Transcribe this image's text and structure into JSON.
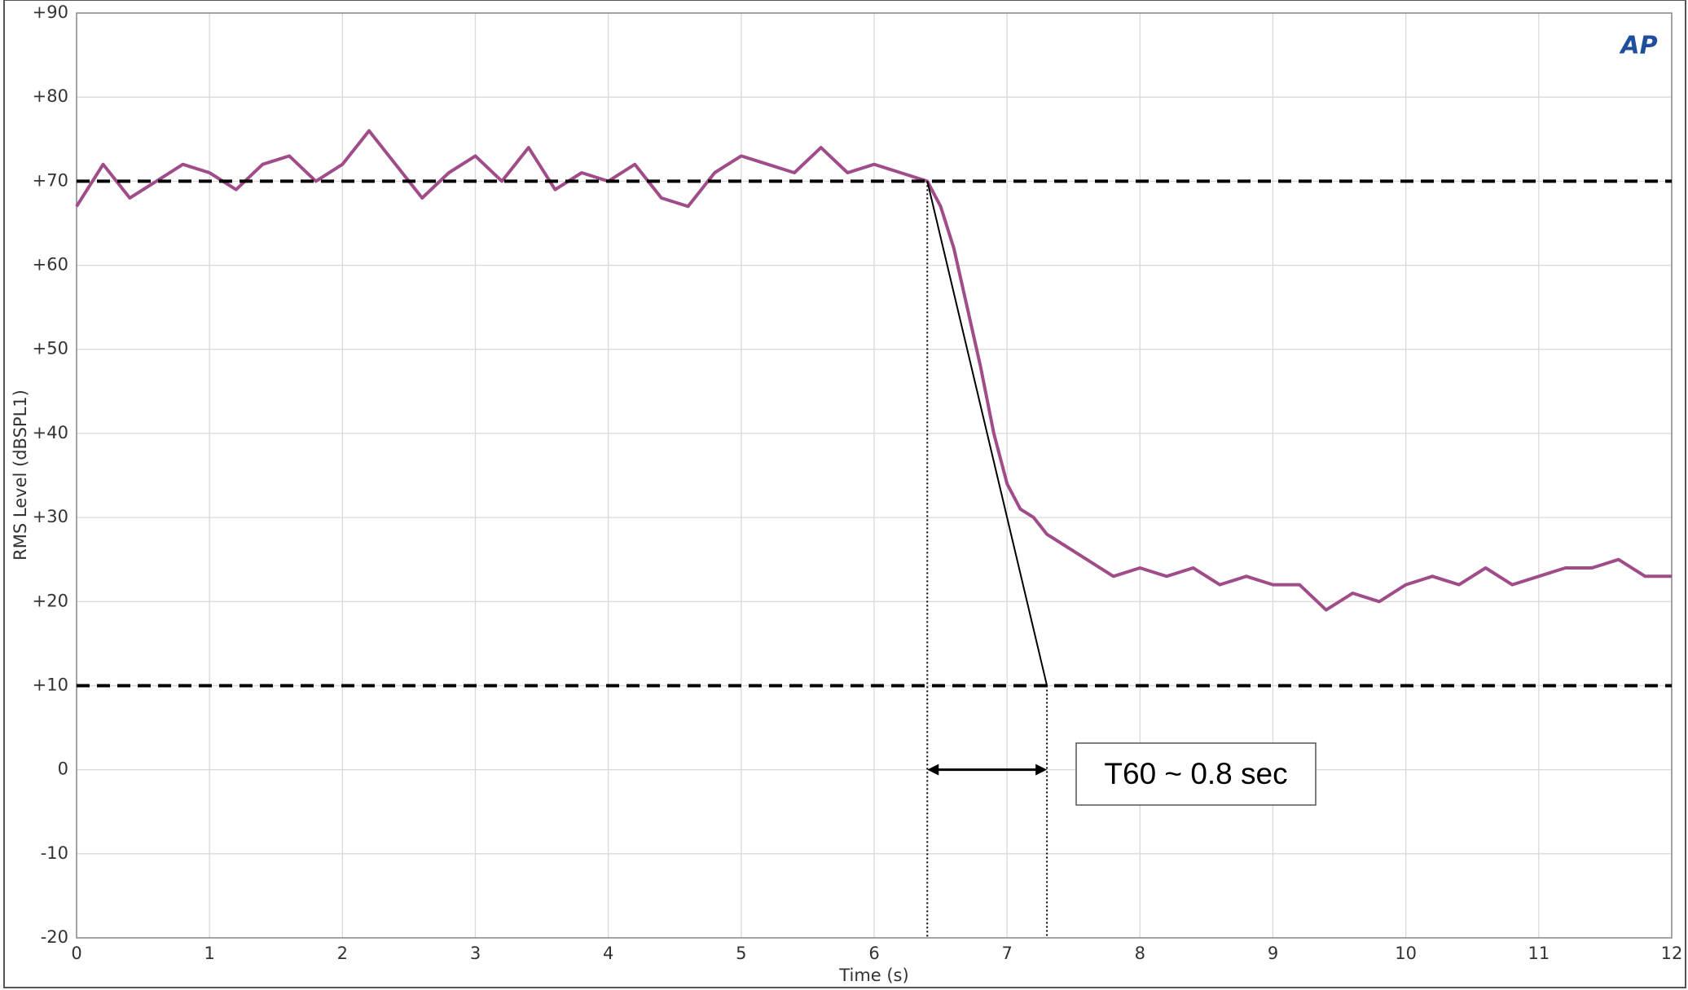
{
  "chart_data": {
    "type": "line",
    "y_label": "RMS Level (dBSPL1)",
    "x_label": "Time (s)",
    "logo": "AP",
    "annotation": "T60 ~ 0.8 sec",
    "color": "#a04c88",
    "x": [
      0,
      0.2,
      0.4,
      0.6,
      0.8,
      1.0,
      1.2,
      1.4,
      1.6,
      1.8,
      2.0,
      2.2,
      2.4,
      2.6,
      2.8,
      3.0,
      3.2,
      3.4,
      3.6,
      3.8,
      4.0,
      4.2,
      4.4,
      4.6,
      4.8,
      5.0,
      5.2,
      5.4,
      5.6,
      5.8,
      6.0,
      6.2,
      6.4,
      6.5,
      6.6,
      6.7,
      6.8,
      6.9,
      7.0,
      7.1,
      7.2,
      7.3,
      7.4,
      7.6,
      7.8,
      8.0,
      8.2,
      8.4,
      8.6,
      8.8,
      9.0,
      9.2,
      9.4,
      9.6,
      9.8,
      10.0,
      10.2,
      10.4,
      10.6,
      10.8,
      11.0,
      11.2,
      11.4,
      11.6,
      11.8,
      12.0
    ],
    "values": [
      67,
      72,
      68,
      70,
      72,
      71,
      69,
      72,
      73,
      70,
      72,
      76,
      72,
      68,
      71,
      73,
      70,
      74,
      69,
      71,
      70,
      72,
      68,
      67,
      71,
      73,
      72,
      71,
      74,
      71,
      72,
      71,
      70,
      67,
      62,
      55,
      48,
      40,
      34,
      31,
      30,
      28,
      27,
      25,
      23,
      24,
      23,
      24,
      22,
      23,
      22,
      22,
      19,
      21,
      20,
      22,
      23,
      22,
      24,
      22,
      23,
      24,
      24,
      25,
      23,
      23
    ],
    "reference_lines": [
      70,
      10
    ],
    "fit_line": {
      "x": [
        6.4,
        7.3
      ],
      "y": [
        70,
        10
      ]
    },
    "markers": [
      6.4,
      7.3
    ],
    "arrow_y": 0,
    "xlim": [
      0,
      12
    ],
    "ylim": [
      -20,
      90
    ],
    "xticks": [
      0,
      1,
      2,
      3,
      4,
      5,
      6,
      7,
      8,
      9,
      10,
      11,
      12
    ],
    "yticks": [
      {
        "value": 90,
        "label": "+90"
      },
      {
        "value": 80,
        "label": "+80"
      },
      {
        "value": 70,
        "label": "+70"
      },
      {
        "value": 60,
        "label": "+60"
      },
      {
        "value": 50,
        "label": "+50"
      },
      {
        "value": 40,
        "label": "+40"
      },
      {
        "value": 30,
        "label": "+30"
      },
      {
        "value": 20,
        "label": "+20"
      },
      {
        "value": 10,
        "label": "+10"
      },
      0,
      -10,
      -20
    ],
    "grid": true
  }
}
